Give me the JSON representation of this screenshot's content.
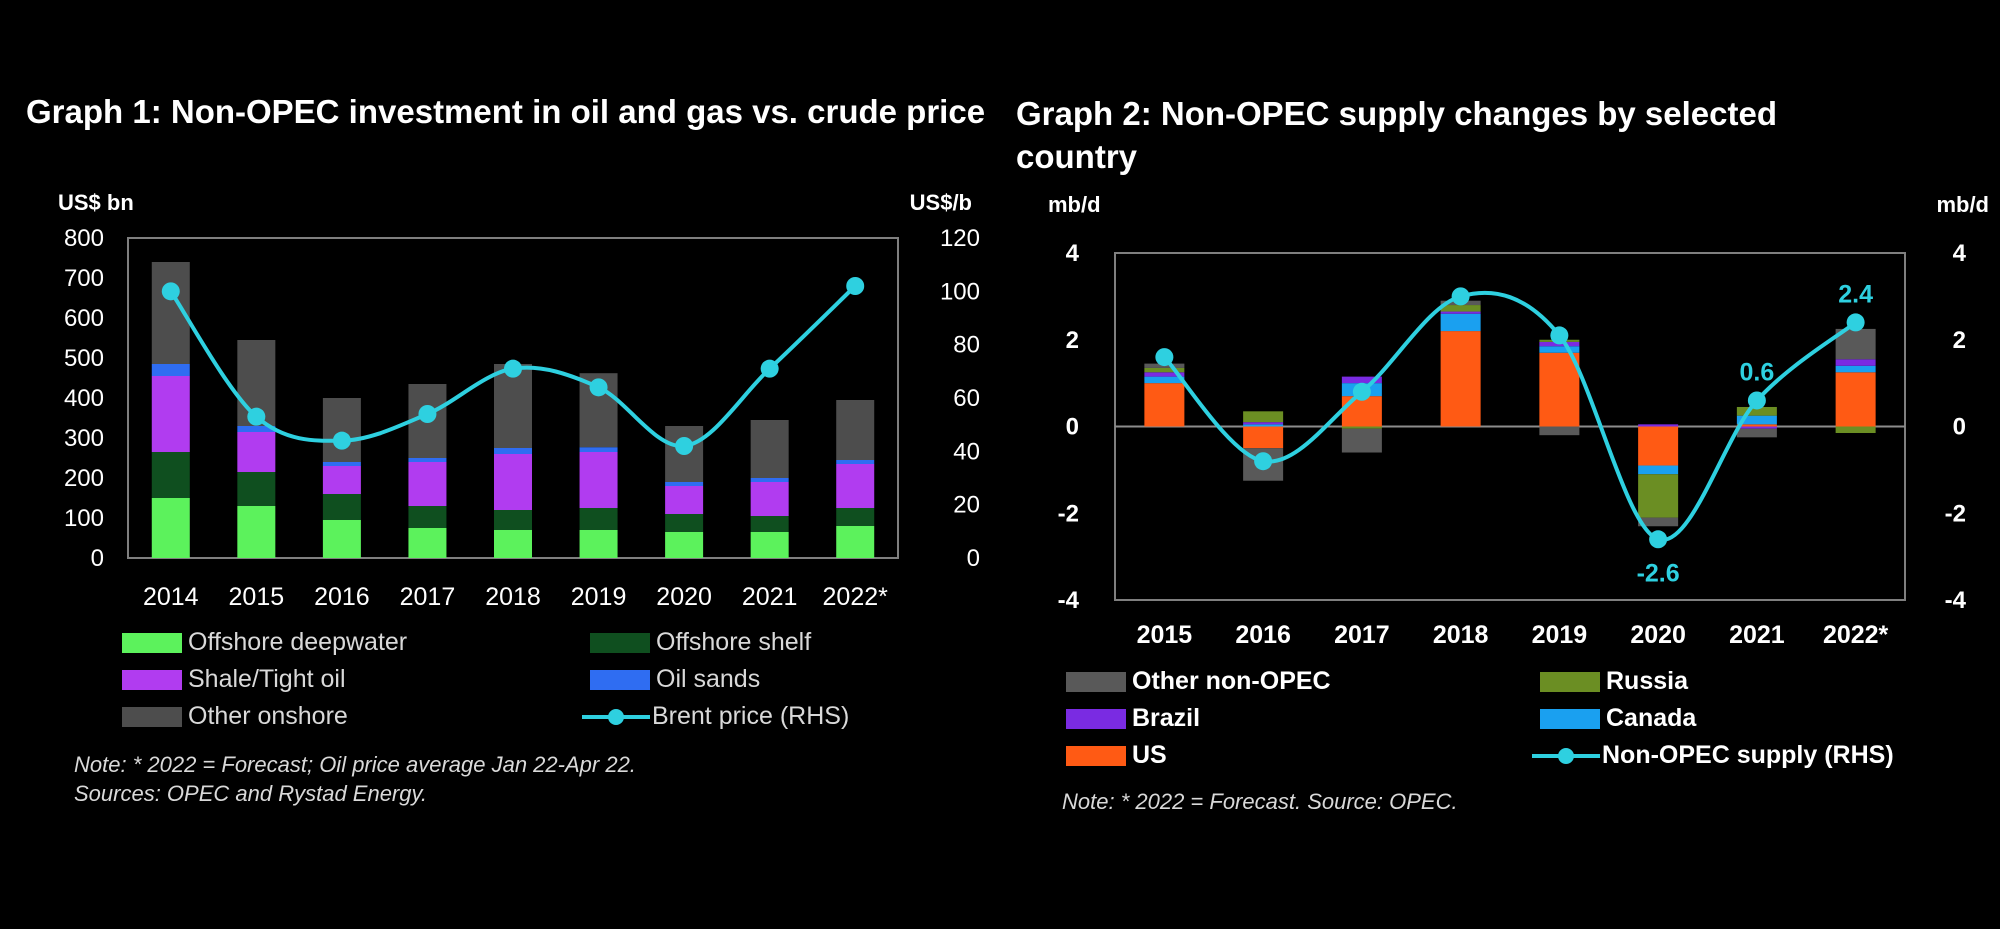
{
  "graph1": {
    "title": "Graph 1: Non-OPEC investment in oil and gas vs. crude price",
    "note_lines": [
      "Note: * 2022 = Forecast; Oil price average Jan 22-Apr 22.",
      "Sources: OPEC and Rystad Energy."
    ]
  },
  "graph2": {
    "title": "Graph 2: Non-OPEC supply changes by selected country",
    "note_lines": [
      "Note: * 2022 = Forecast. Source: OPEC."
    ]
  },
  "chart_data": [
    {
      "type": "bar",
      "stacked": true,
      "title": "Graph 1: Non-OPEC investment in oil and gas vs. crude price",
      "ylabel_left": "US$ bn",
      "ylabel_right": "US$/b",
      "ylim_left": [
        0,
        800
      ],
      "yticks_left": [
        0,
        100,
        200,
        300,
        400,
        500,
        600,
        700,
        800
      ],
      "ylim_right": [
        0,
        120
      ],
      "yticks_right": [
        0,
        20,
        40,
        60,
        80,
        100,
        120
      ],
      "categories": [
        "2014",
        "2015",
        "2016",
        "2017",
        "2018",
        "2019",
        "2020",
        "2021",
        "2022*"
      ],
      "series": [
        {
          "name": "Offshore deepwater",
          "color": "#5cf25c",
          "values": [
            150,
            130,
            95,
            75,
            70,
            70,
            65,
            65,
            80
          ]
        },
        {
          "name": "Offshore shelf",
          "color": "#0f4f1f",
          "values": [
            115,
            85,
            65,
            55,
            50,
            55,
            45,
            40,
            45
          ]
        },
        {
          "name": "Shale/Tight oil",
          "color": "#b13cf0",
          "values": [
            190,
            100,
            70,
            110,
            140,
            140,
            70,
            85,
            110
          ]
        },
        {
          "name": "Oil sands",
          "color": "#2f6df2",
          "values": [
            30,
            15,
            10,
            10,
            15,
            12,
            10,
            10,
            10
          ]
        },
        {
          "name": "Other onshore",
          "color": "#4d4d4d",
          "values": [
            255,
            215,
            160,
            185,
            210,
            185,
            140,
            145,
            150
          ]
        }
      ],
      "line_series": {
        "name": "Brent price (RHS)",
        "axis": "right",
        "color": "#2ed0e0",
        "values": [
          100,
          53,
          44,
          54,
          71,
          64,
          42,
          71,
          102
        ]
      },
      "grid": false,
      "legend_position": "bottom"
    },
    {
      "type": "bar",
      "stacked": true,
      "title": "Graph 2: Non-OPEC supply changes by selected country",
      "ylabel_left": "mb/d",
      "ylabel_right": "mb/d",
      "ylim_left": [
        -4,
        4
      ],
      "yticks_left": [
        -4,
        -2,
        0,
        2,
        4
      ],
      "ylim_right": [
        -4,
        4
      ],
      "yticks_right": [
        -4,
        -2,
        0,
        2,
        4
      ],
      "categories": [
        "2015",
        "2016",
        "2017",
        "2018",
        "2019",
        "2020",
        "2021",
        "2022*"
      ],
      "series": [
        {
          "name": "US",
          "color": "#ff5a14",
          "values": [
            1.0,
            -0.5,
            0.7,
            2.2,
            1.7,
            -0.9,
            0.05,
            1.25
          ]
        },
        {
          "name": "Canada",
          "color": "#1aa0f0",
          "values": [
            0.15,
            0.05,
            0.3,
            0.4,
            0.15,
            -0.2,
            0.2,
            0.15
          ]
        },
        {
          "name": "Brazil",
          "color": "#7a2be2",
          "values": [
            0.1,
            0.05,
            0.15,
            0.05,
            0.1,
            0.05,
            -0.05,
            0.15
          ]
        },
        {
          "name": "Russia",
          "color": "#6b8e23",
          "values": [
            0.1,
            0.25,
            -0.05,
            0.15,
            0.05,
            -1.0,
            0.2,
            -0.15
          ]
        },
        {
          "name": "Other non-OPEC",
          "color": "#595959",
          "values": [
            0.1,
            -0.75,
            -0.55,
            0.1,
            -0.2,
            -0.2,
            -0.2,
            0.7
          ]
        }
      ],
      "line_series": {
        "name": "Non-OPEC supply (RHS)",
        "axis": "right",
        "color": "#2ed0e0",
        "values": [
          1.6,
          -0.8,
          0.8,
          3.0,
          2.1,
          -2.6,
          0.6,
          2.4
        ]
      },
      "data_labels": [
        {
          "category": "2020",
          "value": -2.6,
          "text": "-2.6"
        },
        {
          "category": "2021",
          "value": 0.6,
          "text": "0.6"
        },
        {
          "category": "2022*",
          "value": 2.4,
          "text": "2.4"
        }
      ],
      "grid": false,
      "legend_position": "bottom"
    }
  ]
}
